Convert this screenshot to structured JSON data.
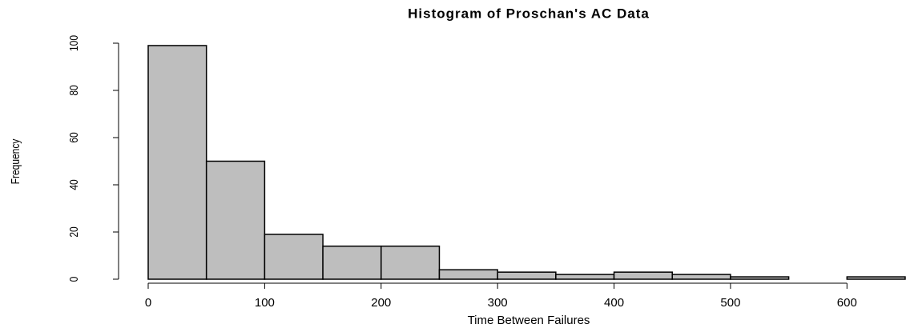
{
  "chart_data": {
    "type": "histogram",
    "title": "Histogram of Proschan's AC Data",
    "xlabel": "Time Between Failures",
    "ylabel": "Frequency",
    "bins": [
      0,
      50,
      100,
      150,
      200,
      250,
      300,
      350,
      400,
      450,
      500,
      550,
      600,
      650
    ],
    "values": [
      99,
      50,
      19,
      14,
      14,
      4,
      3,
      2,
      3,
      2,
      1,
      0,
      1
    ],
    "color": "#bebebe",
    "xlim": [
      0,
      650
    ],
    "xticks": [
      0,
      100,
      200,
      300,
      400,
      500,
      600
    ],
    "ylim": [
      0,
      100
    ],
    "yticks": [
      0,
      20,
      40,
      60,
      80,
      100
    ]
  }
}
